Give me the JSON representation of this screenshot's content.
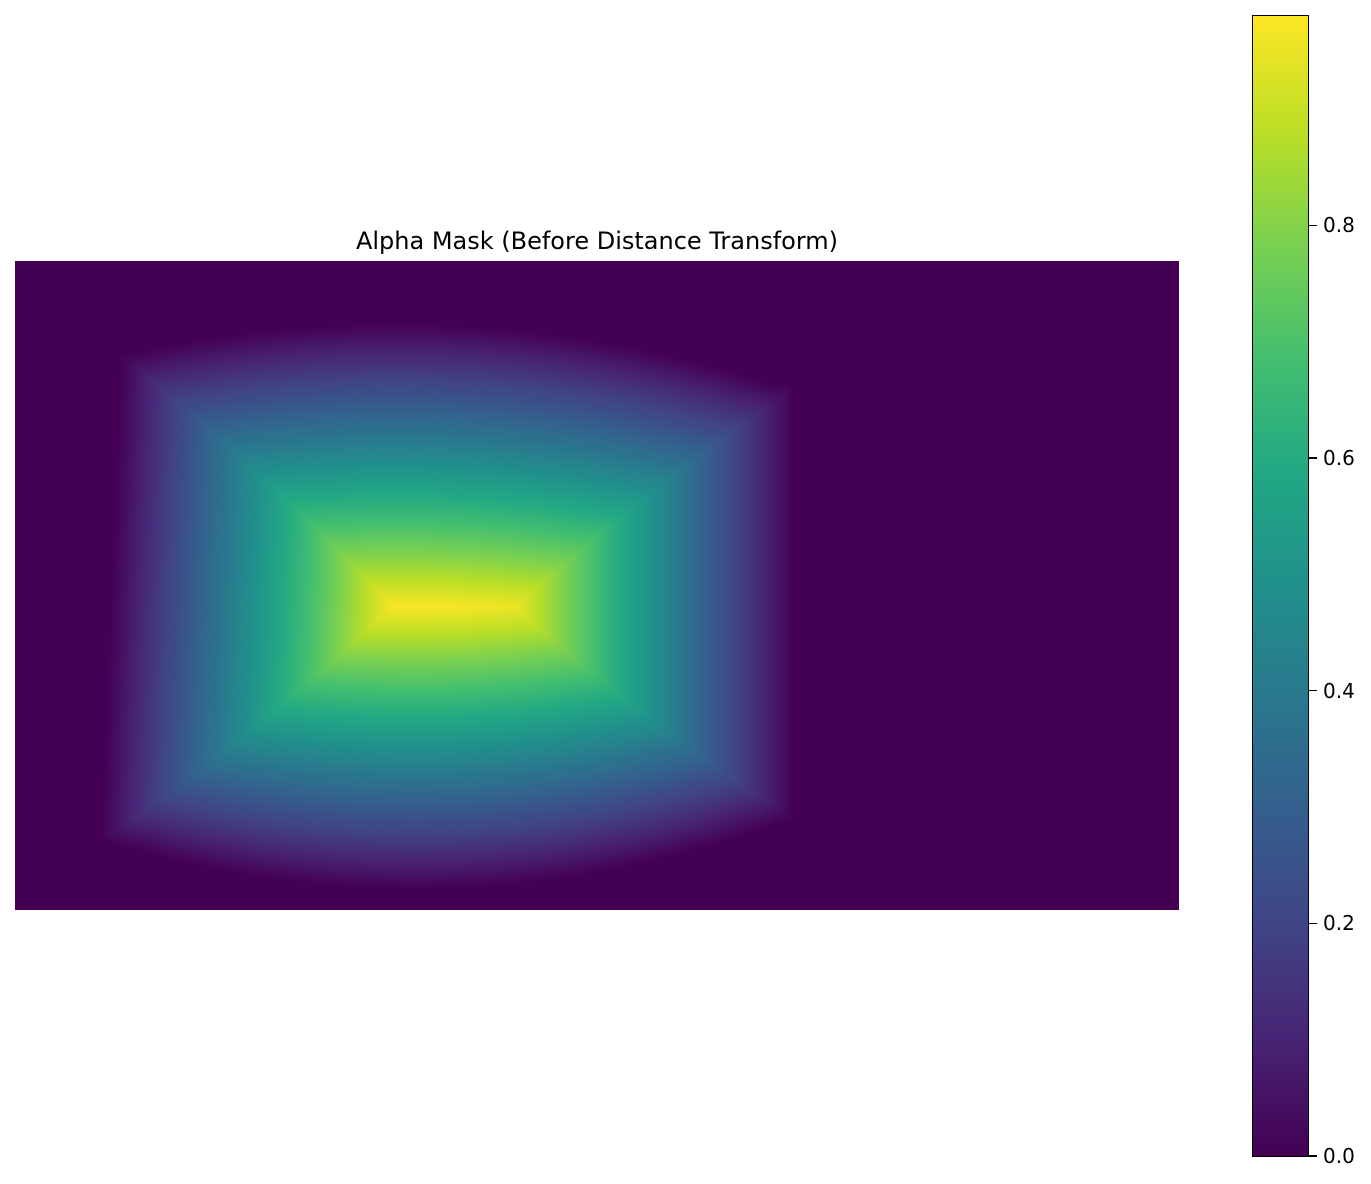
{
  "chart_data": {
    "type": "heatmap",
    "title": "Alpha Mask (Before Distance Transform)",
    "xlabel": "",
    "ylabel": "",
    "axis": "off",
    "colormap": "viridis",
    "value_range": [
      0.0,
      0.98
    ],
    "grid": false,
    "colorbar": {
      "placement": "right",
      "ticks": [
        0.0,
        0.2,
        0.4,
        0.6,
        0.8
      ],
      "tick_labels": [
        "0.0",
        "0.2",
        "0.4",
        "0.6",
        "0.8"
      ]
    },
    "mask_region": {
      "description_units": "fraction of image width/height",
      "x_range": [
        0.07,
        0.67
      ],
      "y_range": [
        0.1,
        0.93
      ],
      "peak_value": 0.98
    },
    "background_value": 0.0
  }
}
